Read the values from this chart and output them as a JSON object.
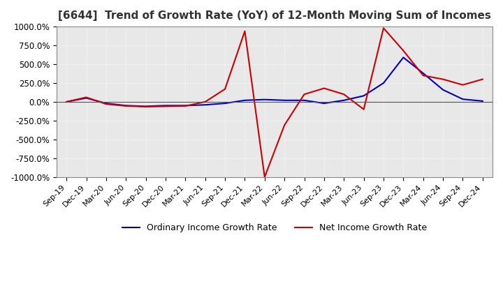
{
  "title": "[6644]  Trend of Growth Rate (YoY) of 12-Month Moving Sum of Incomes",
  "ylim": [
    -1000,
    1000
  ],
  "yticks": [
    -1000,
    -750,
    -500,
    -250,
    0,
    250,
    500,
    750,
    1000
  ],
  "ytick_labels": [
    "-1000.0%",
    "-750.0%",
    "-500.0%",
    "-250.0%",
    "0.0%",
    "250.0%",
    "500.0%",
    "750.0%",
    "1000.0%"
  ],
  "background_color": "#ffffff",
  "plot_bg_color": "#e8e8e8",
  "grid_color": "#ffffff",
  "blue_color": "#0000cc",
  "red_color": "#cc0000",
  "legend_blue": "Ordinary Income Growth Rate",
  "legend_red": "Net Income Growth Rate",
  "x_labels": [
    "Sep-19",
    "Dec-19",
    "Mar-20",
    "Jun-20",
    "Sep-20",
    "Dec-20",
    "Mar-21",
    "Jun-21",
    "Sep-21",
    "Dec-21",
    "Mar-22",
    "Jun-22",
    "Sep-22",
    "Dec-22",
    "Mar-23",
    "Jun-23",
    "Sep-23",
    "Dec-23",
    "Mar-24",
    "Jun-24",
    "Sep-24",
    "Dec-24"
  ],
  "ordinary_income": [
    0,
    50,
    -20,
    -50,
    -60,
    -50,
    -50,
    -40,
    -20,
    20,
    30,
    20,
    20,
    -20,
    20,
    80,
    250,
    590,
    380,
    160,
    35,
    10
  ],
  "net_income": [
    0,
    60,
    -30,
    -55,
    -65,
    -60,
    -55,
    0,
    170,
    940,
    -1000,
    -310,
    100,
    180,
    100,
    -100,
    980,
    680,
    350,
    300,
    225,
    300
  ]
}
